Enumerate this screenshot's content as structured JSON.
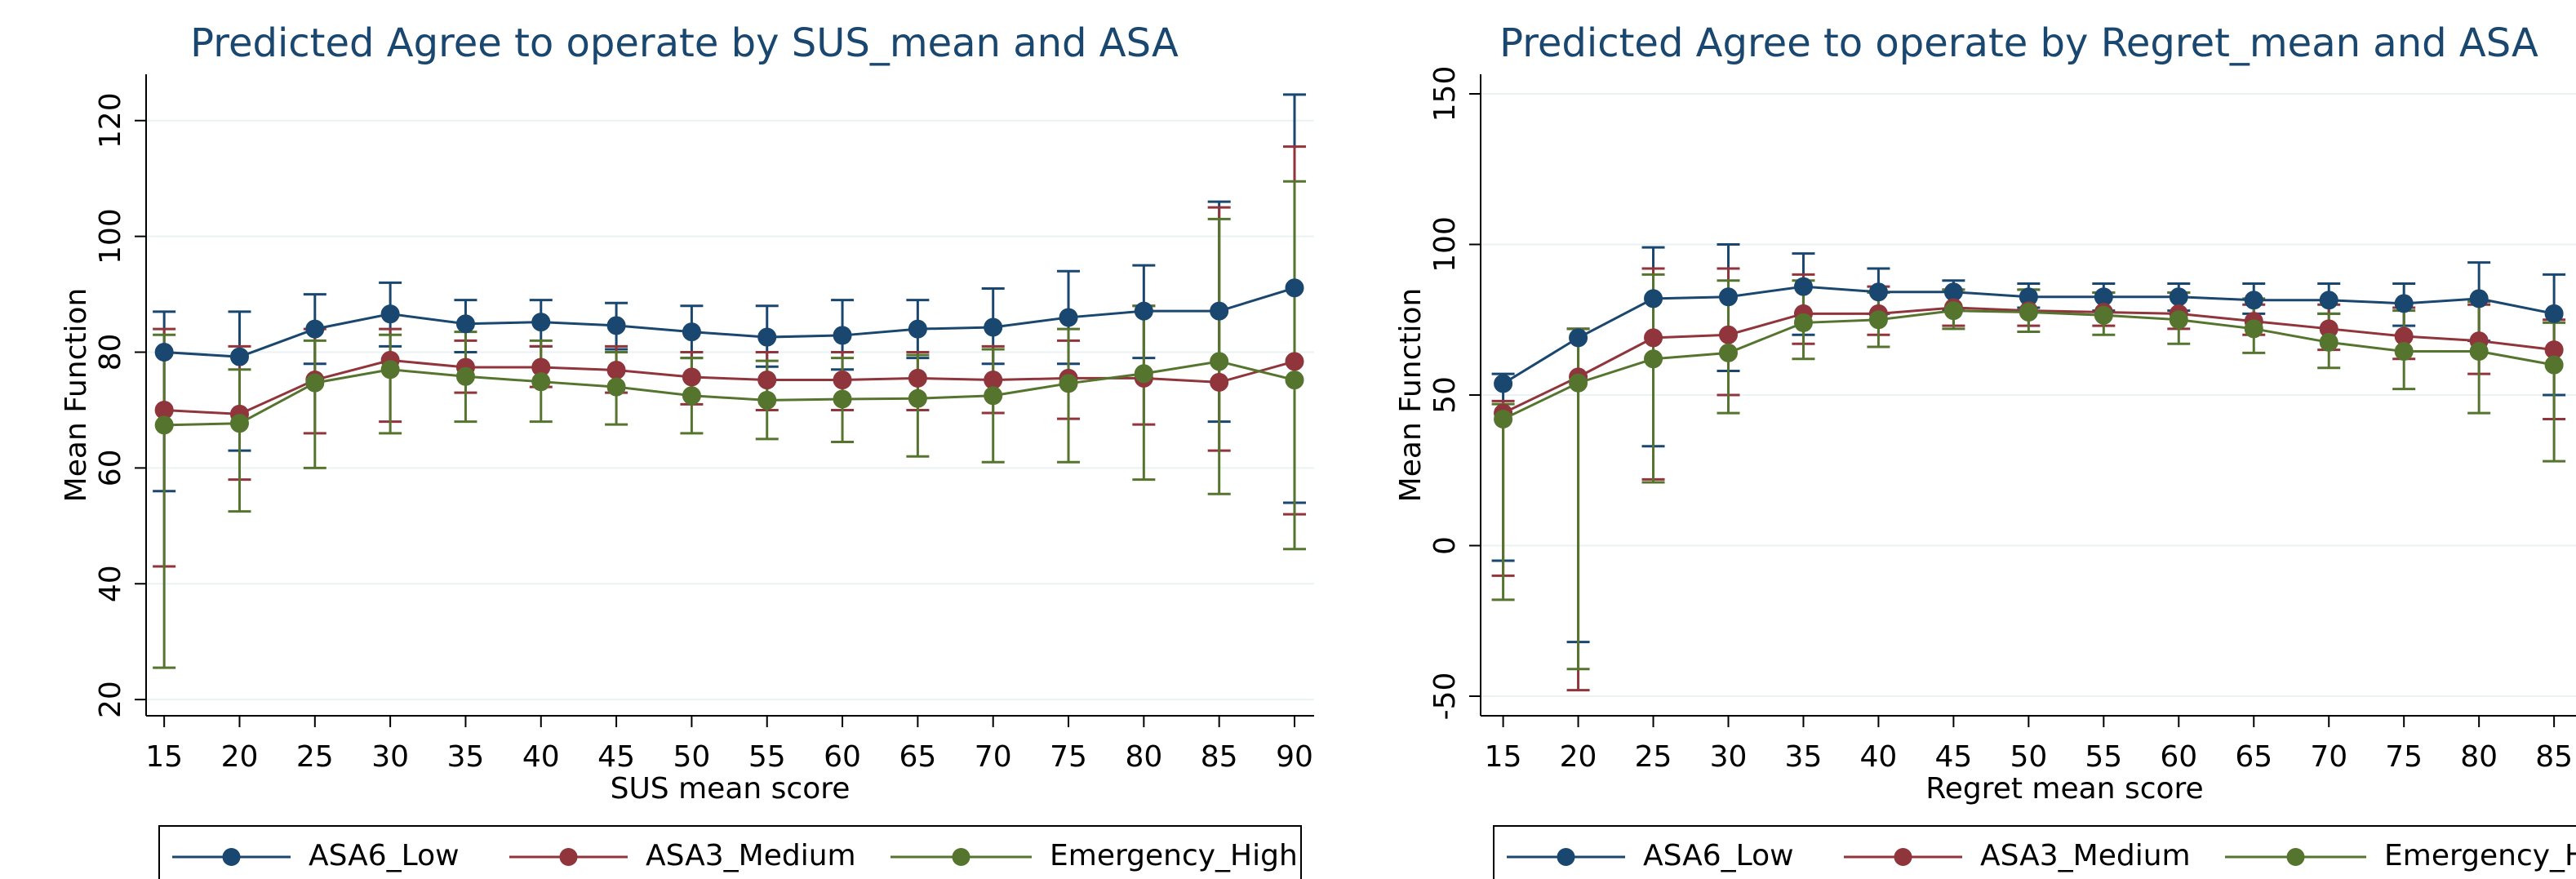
{
  "chart_data": [
    {
      "type": "line",
      "title": "Predicted Agree to operate by SUS_mean and ASA",
      "xlabel": "SUS mean score",
      "ylabel": "Mean Function",
      "x": [
        15,
        20,
        25,
        30,
        35,
        40,
        45,
        50,
        55,
        60,
        65,
        70,
        75,
        80,
        85,
        90
      ],
      "xlim": [
        13.8,
        91.3
      ],
      "xticks": [
        15,
        20,
        25,
        30,
        35,
        40,
        45,
        50,
        55,
        60,
        65,
        70,
        75,
        80,
        85,
        90
      ],
      "ylim": [
        17.2,
        128
      ],
      "yticks": [
        20,
        40,
        60,
        80,
        100,
        120
      ],
      "grid": true,
      "legend": "bottom",
      "series": [
        {
          "name": "ASA6_Low",
          "color": "#1a476f",
          "values": [
            80,
            79.2,
            84,
            86.6,
            84.9,
            85.2,
            84.6,
            83.5,
            82.6,
            82.9,
            84,
            84.3,
            86,
            87.1,
            87.1,
            91.1
          ],
          "ci_low": [
            56,
            63,
            78,
            81,
            80,
            81,
            80.5,
            79,
            77.5,
            77,
            79,
            78,
            78,
            79,
            68,
            54
          ],
          "ci_high": [
            87,
            87,
            90,
            92,
            89,
            89,
            88.5,
            88,
            88,
            89,
            89,
            91,
            94,
            95,
            106,
            124.5
          ]
        },
        {
          "name": "ASA3_Medium",
          "color": "#90353b",
          "values": [
            70,
            69.3,
            75.2,
            78.6,
            77.4,
            77.4,
            76.9,
            75.7,
            75.2,
            75.2,
            75.5,
            75.2,
            75.5,
            75.5,
            74.8,
            78.4
          ],
          "ci_low": [
            43,
            58,
            66,
            68,
            73,
            74,
            73,
            71,
            70,
            70,
            70,
            69.5,
            68.5,
            67.5,
            63,
            52
          ],
          "ci_high": [
            84,
            81,
            84,
            84,
            82,
            81,
            81,
            80,
            80,
            80,
            80,
            81,
            82,
            88,
            105,
            115.5
          ]
        },
        {
          "name": "Emergency_High",
          "color": "#55752f",
          "values": [
            67.4,
            67.7,
            74.7,
            77,
            75.8,
            74.9,
            74,
            72.5,
            71.7,
            71.9,
            72,
            72.5,
            74.6,
            76.3,
            78.4,
            75.2
          ],
          "ci_low": [
            25.5,
            52.5,
            60,
            66,
            68,
            68,
            67.5,
            66,
            65,
            64.5,
            62,
            61,
            61,
            58,
            55.5,
            46
          ],
          "ci_high": [
            83,
            77,
            82,
            83,
            83.5,
            82,
            80,
            79,
            78.5,
            79,
            79.5,
            80.5,
            84,
            88,
            103,
            109.5
          ]
        }
      ]
    },
    {
      "type": "line",
      "title": "Predicted Agree to operate by Regret_mean and ASA",
      "xlabel": "Regret mean score",
      "ylabel": "Mean Function",
      "x": [
        15,
        20,
        25,
        30,
        35,
        40,
        45,
        50,
        55,
        60,
        65,
        70,
        75,
        80,
        85
      ],
      "xlim": [
        13.5,
        91.3
      ],
      "xticks": [
        15,
        20,
        25,
        30,
        35,
        40,
        45,
        50,
        55,
        60,
        65,
        70,
        75,
        80,
        85
      ],
      "ylim": [
        -56.5,
        156.5
      ],
      "yticks": [
        -50,
        0,
        50,
        100,
        150
      ],
      "grid": true,
      "legend": "bottom",
      "series": [
        {
          "name": "ASA6_Low",
          "color": "#1a476f",
          "values": [
            53.8,
            69,
            82,
            82.6,
            86,
            84.2,
            84.2,
            82.6,
            82.6,
            82.6,
            81.5,
            81.5,
            80.4,
            82,
            77
          ],
          "ci_low": [
            -5,
            -32,
            33,
            58,
            70,
            77,
            78,
            79,
            78,
            78,
            77,
            77,
            73,
            68,
            50
          ],
          "ci_high": [
            57,
            72,
            99,
            100,
            97,
            92,
            88,
            87,
            87,
            87,
            87,
            87,
            87,
            94,
            90
          ]
        },
        {
          "name": "ASA3_Medium",
          "color": "#90353b",
          "values": [
            44,
            56,
            69,
            70,
            77,
            77,
            79,
            78,
            77.5,
            77,
            74.5,
            72,
            69.5,
            68,
            65
          ],
          "ci_low": [
            -10,
            -48,
            22,
            50,
            67,
            70,
            73,
            73,
            73,
            72,
            70,
            65,
            62,
            57,
            42
          ],
          "ci_high": [
            48,
            72,
            92,
            92,
            90,
            86,
            85,
            85,
            84,
            84,
            80,
            80,
            79,
            80,
            75
          ]
        },
        {
          "name": "Emergency_High",
          "color": "#55752f",
          "values": [
            42,
            54,
            62,
            64,
            74,
            75,
            78,
            77.5,
            76.5,
            75,
            72,
            67.5,
            64.5,
            64.5,
            60
          ],
          "ci_low": [
            -18,
            -41,
            21,
            44,
            62,
            66,
            72,
            71,
            70,
            67,
            64,
            59,
            52,
            44,
            28
          ],
          "ci_high": [
            47,
            72,
            90,
            88,
            88,
            84,
            85,
            85,
            84,
            84,
            82,
            77,
            78,
            81,
            74
          ]
        }
      ]
    }
  ]
}
